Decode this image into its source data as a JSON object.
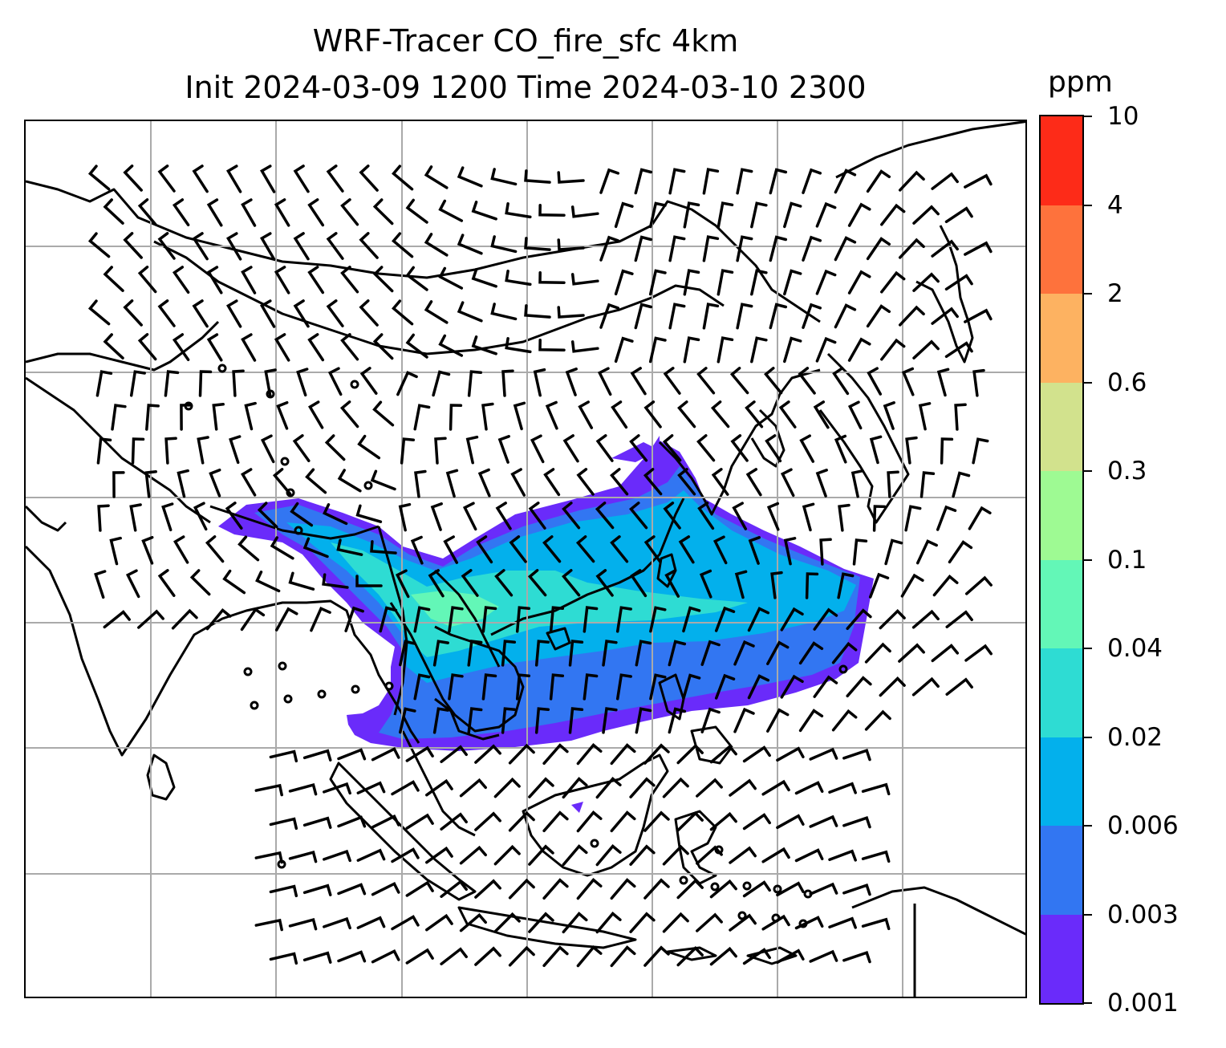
{
  "title_line1": "WRF-Tracer CO_fire_sfc 4km",
  "title_line2": "Init 2024-03-09 1200 Time 2024-03-10 2300",
  "colorbar": {
    "unit": "ppm",
    "ticks": [
      "0.001",
      "0.003",
      "0.006",
      "0.02",
      "0.04",
      "0.1",
      "0.3",
      "0.6",
      "2",
      "4",
      "10"
    ],
    "colors": [
      "#6a2bfa",
      "#3276f2",
      "#03b0ec",
      "#2edcd3",
      "#63f7b7",
      "#9efa93",
      "#d2e28d",
      "#fdb261",
      "#fe723c",
      "#fd2b18"
    ]
  },
  "map": {
    "field": "CO_fire_sfc",
    "wind": "barbs",
    "gridlines": true
  }
}
